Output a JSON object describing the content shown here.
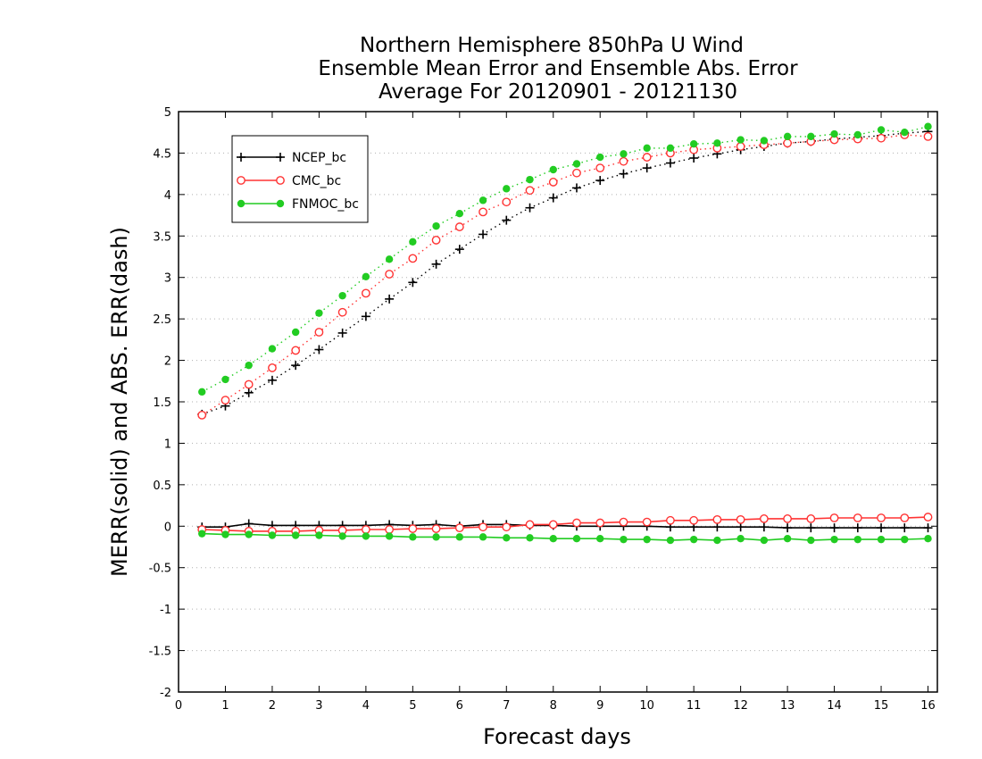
{
  "chart_data": {
    "type": "line",
    "title_lines": [
      "Northern Hemisphere 850hPa U Wind",
      "Ensemble Mean Error and Ensemble Abs. Error",
      "Average For 20120901 - 20121130"
    ],
    "xlabel": "Forecast days",
    "ylabel": "MERR(solid) and ABS. ERR(dash)",
    "xlim": [
      0,
      16.2
    ],
    "ylim": [
      -2,
      5
    ],
    "xticks": [
      0,
      1,
      2,
      3,
      4,
      5,
      6,
      7,
      8,
      9,
      10,
      11,
      12,
      13,
      14,
      15,
      16
    ],
    "yticks": [
      -2,
      -1.5,
      -1,
      -0.5,
      0,
      0.5,
      1,
      1.5,
      2,
      2.5,
      3,
      3.5,
      4,
      4.5,
      5
    ],
    "grid": "horizontal dotted",
    "legend_position": "top-left",
    "x": [
      0.5,
      1,
      1.5,
      2,
      2.5,
      3,
      3.5,
      4,
      4.5,
      5,
      5.5,
      6,
      6.5,
      7,
      7.5,
      8,
      8.5,
      9,
      9.5,
      10,
      10.5,
      11,
      11.5,
      12,
      12.5,
      13,
      13.5,
      14,
      14.5,
      15,
      15.5,
      16
    ],
    "series": [
      {
        "name": "NCEP_bc",
        "color": "#000000",
        "marker": "plus",
        "mean_error": [
          -0.01,
          -0.01,
          0.03,
          0.01,
          0.01,
          0.01,
          0.01,
          0.01,
          0.02,
          0.01,
          0.02,
          0.0,
          0.02,
          0.02,
          0.01,
          0.01,
          0.0,
          0.0,
          0.0,
          0.0,
          -0.01,
          -0.01,
          -0.01,
          -0.01,
          -0.01,
          -0.02,
          -0.02,
          -0.02,
          -0.02,
          -0.02,
          -0.02,
          -0.02
        ],
        "abs_error": [
          1.35,
          1.45,
          1.61,
          1.76,
          1.94,
          2.13,
          2.33,
          2.53,
          2.74,
          2.94,
          3.16,
          3.34,
          3.52,
          3.69,
          3.84,
          3.96,
          4.08,
          4.17,
          4.25,
          4.32,
          4.38,
          4.44,
          4.49,
          4.54,
          4.58,
          4.62,
          4.64,
          4.67,
          4.69,
          4.71,
          4.74,
          4.76
        ]
      },
      {
        "name": "CMC_bc",
        "color": "#ff3333",
        "marker": "open-circle",
        "mean_error": [
          -0.04,
          -0.05,
          -0.06,
          -0.06,
          -0.06,
          -0.05,
          -0.05,
          -0.04,
          -0.04,
          -0.03,
          -0.03,
          -0.02,
          -0.01,
          -0.01,
          0.02,
          0.02,
          0.04,
          0.04,
          0.05,
          0.05,
          0.07,
          0.07,
          0.08,
          0.08,
          0.09,
          0.09,
          0.09,
          0.1,
          0.1,
          0.1,
          0.1,
          0.11
        ],
        "abs_error": [
          1.34,
          1.52,
          1.71,
          1.91,
          2.12,
          2.34,
          2.58,
          2.81,
          3.04,
          3.23,
          3.45,
          3.61,
          3.79,
          3.91,
          4.05,
          4.15,
          4.26,
          4.32,
          4.4,
          4.45,
          4.5,
          4.54,
          4.56,
          4.58,
          4.6,
          4.62,
          4.64,
          4.66,
          4.67,
          4.68,
          4.72,
          4.7
        ]
      },
      {
        "name": "FNMOC_bc",
        "color": "#22cc22",
        "marker": "filled-circle",
        "mean_error": [
          -0.09,
          -0.1,
          -0.1,
          -0.11,
          -0.11,
          -0.11,
          -0.12,
          -0.12,
          -0.12,
          -0.13,
          -0.13,
          -0.13,
          -0.13,
          -0.14,
          -0.14,
          -0.15,
          -0.15,
          -0.15,
          -0.16,
          -0.16,
          -0.17,
          -0.16,
          -0.17,
          -0.15,
          -0.17,
          -0.15,
          -0.17,
          -0.16,
          -0.16,
          -0.16,
          -0.16,
          -0.15
        ],
        "abs_error": [
          1.62,
          1.77,
          1.94,
          2.14,
          2.34,
          2.57,
          2.78,
          3.01,
          3.22,
          3.43,
          3.62,
          3.77,
          3.93,
          4.07,
          4.18,
          4.3,
          4.37,
          4.45,
          4.49,
          4.56,
          4.56,
          4.61,
          4.62,
          4.66,
          4.65,
          4.7,
          4.7,
          4.73,
          4.72,
          4.78,
          4.75,
          4.82
        ]
      }
    ]
  }
}
